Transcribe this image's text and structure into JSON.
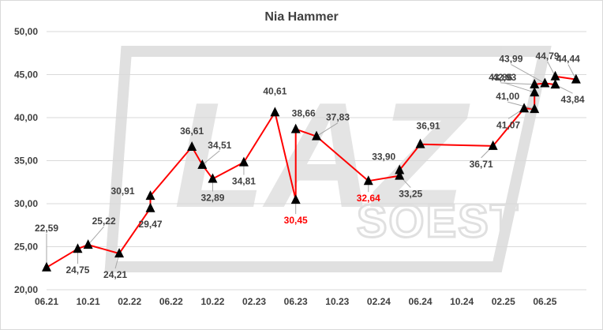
{
  "chart_data": {
    "type": "line",
    "title": "Nia Hammer",
    "xlabel": "",
    "ylabel": "",
    "ylim": [
      20,
      50
    ],
    "yticks": [
      "20,00",
      "25,00",
      "30,00",
      "35,00",
      "40,00",
      "45,00",
      "50,00"
    ],
    "xticks": [
      "06.21",
      "10.21",
      "02.22",
      "06.22",
      "10.22",
      "02.23",
      "06.23",
      "10.23",
      "02.24",
      "06.24",
      "10.24",
      "02.25",
      "06.25"
    ],
    "grid": "horizontal",
    "legend": "none",
    "colors": {
      "line": "#ff0000",
      "marker": "#000000",
      "label": "#404040",
      "low_label": "#ff0000",
      "grid": "#d9d9d9"
    },
    "watermark": {
      "text_main": "LAZ",
      "text_sub": "SOEST"
    },
    "series": [
      {
        "points": [
          {
            "x": "2021-06",
            "y": 22.59,
            "label": "22,59"
          },
          {
            "x": "2021-09",
            "y": 24.75,
            "label": "24,75"
          },
          {
            "x": "2021-10",
            "y": 25.22,
            "label": "25,22"
          },
          {
            "x": "2022-01",
            "y": 24.21,
            "label": "24,21"
          },
          {
            "x": "2022-04",
            "y": 29.47,
            "label": "29,47"
          },
          {
            "x": "2022-04",
            "y": 30.91,
            "label": "30,91"
          },
          {
            "x": "2022-08",
            "y": 36.61,
            "label": "36,61"
          },
          {
            "x": "2022-09",
            "y": 34.51,
            "label": "34,51"
          },
          {
            "x": "2022-10",
            "y": 32.89,
            "label": "32,89"
          },
          {
            "x": "2023-01",
            "y": 34.81,
            "label": "34,81"
          },
          {
            "x": "2023-04",
            "y": 40.61,
            "label": "40,61"
          },
          {
            "x": "2023-06",
            "y": 30.45,
            "label": "30,45",
            "highlight": true
          },
          {
            "x": "2023-06",
            "y": 38.66,
            "label": "38,66"
          },
          {
            "x": "2023-08",
            "y": 37.83,
            "label": "37,83"
          },
          {
            "x": "2024-01",
            "y": 32.64,
            "label": "32,64",
            "highlight": true
          },
          {
            "x": "2024-04",
            "y": 33.25,
            "label": "33,25"
          },
          {
            "x": "2024-04",
            "y": 33.9,
            "label": "33,90"
          },
          {
            "x": "2024-06",
            "y": 36.91,
            "label": "36,91"
          },
          {
            "x": "2025-01",
            "y": 36.71,
            "label": "36,71"
          },
          {
            "x": "2025-04",
            "y": 41.07,
            "label": "41,07"
          },
          {
            "x": "2025-05",
            "y": 41.0,
            "label": "41,00"
          },
          {
            "x": "2025-05",
            "y": 42.93,
            "label": "42,93"
          },
          {
            "x": "2025-05",
            "y": 43.86,
            "label": "43,86"
          },
          {
            "x": "2025-06",
            "y": 43.99,
            "label": "43,99"
          },
          {
            "x": "2025-07",
            "y": 43.84,
            "label": "43,84"
          },
          {
            "x": "2025-07",
            "y": 44.79,
            "label": "44,79"
          },
          {
            "x": "2025-09",
            "y": 44.44,
            "label": "44,44"
          }
        ]
      }
    ]
  }
}
